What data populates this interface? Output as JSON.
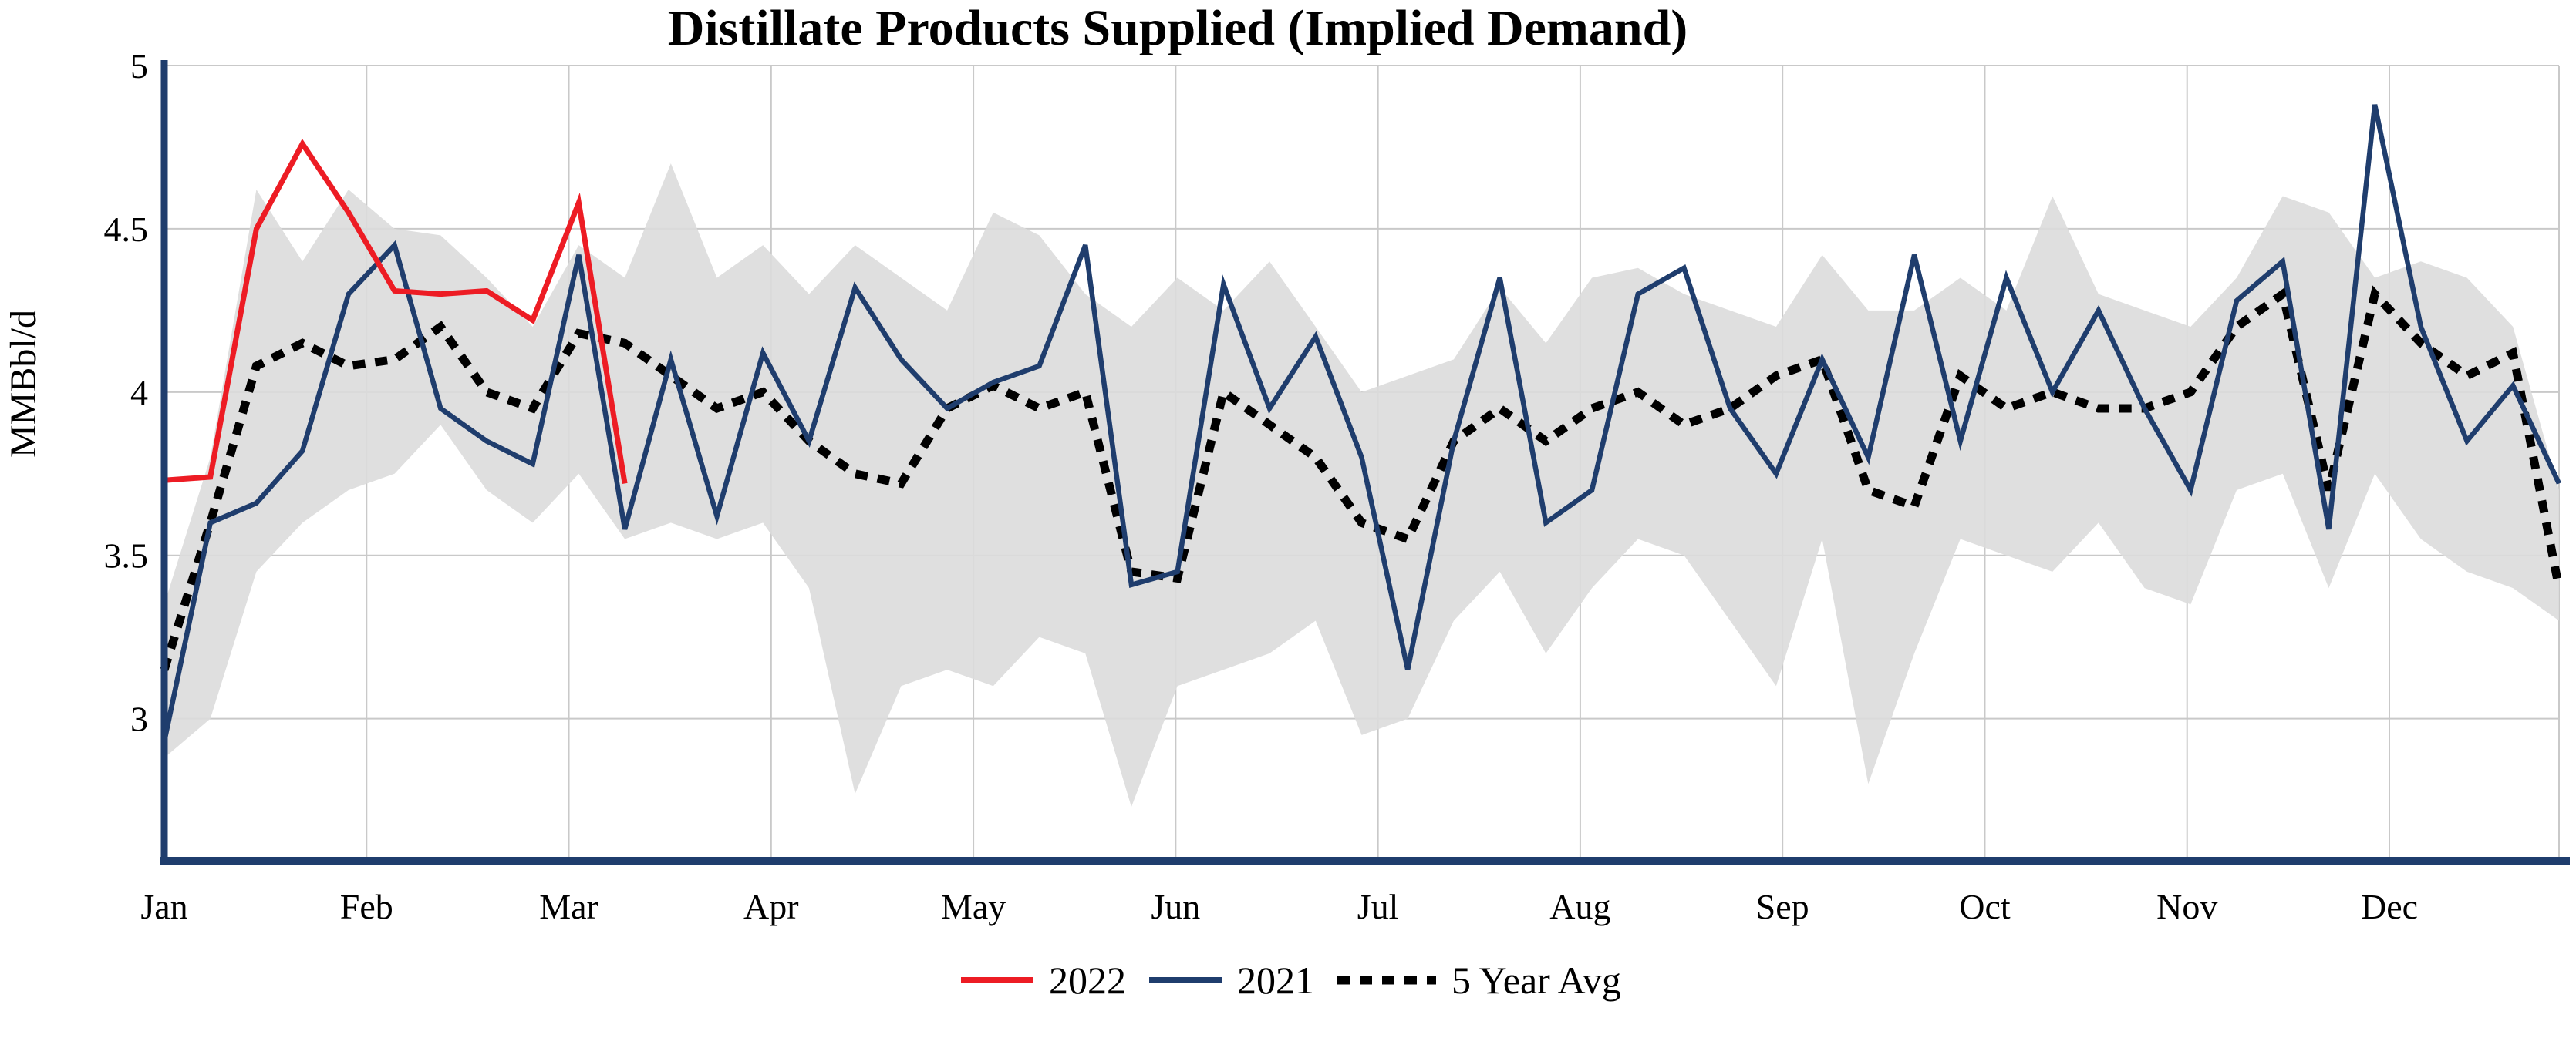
{
  "title": "Distillate Products Supplied (Implied Demand)",
  "y_axis_label": "MMBbl/d",
  "legend": [
    {
      "label": "2022",
      "color": "#ed1c24",
      "dash": ""
    },
    {
      "label": "2021",
      "color": "#1f3d6d",
      "dash": ""
    },
    {
      "label": "5 Year Avg",
      "color": "#000000",
      "dash": "16 13"
    }
  ],
  "colors": {
    "axis": "#1f3d6d",
    "gridline": "#c9c9c9",
    "band_fill": "#dcdcdc",
    "series_2022": "#ed1c24",
    "series_2021": "#1f3d6d",
    "series_avg": "#000000"
  },
  "chart_data": {
    "type": "line",
    "title": "Distillate Products Supplied (Implied Demand)",
    "ylabel": "MMBbl/d",
    "xlabel": "",
    "ylim": [
      2.565,
      5.0
    ],
    "grid": true,
    "legend_position": "bottom",
    "x_unit": "week-of-year",
    "x_months": [
      "Jan",
      "Feb",
      "Mar",
      "Apr",
      "May",
      "Jun",
      "Jul",
      "Aug",
      "Sep",
      "Oct",
      "Nov",
      "Dec"
    ],
    "yticks": [
      {
        "value": 5,
        "label": "5"
      },
      {
        "value": 4.5,
        "label": "4.5"
      },
      {
        "value": 4,
        "label": "4"
      },
      {
        "value": 3.5,
        "label": "3.5"
      },
      {
        "value": 3,
        "label": "3"
      }
    ],
    "series": [
      {
        "name": "2022",
        "color": "#ed1c24",
        "width": 7,
        "dash": "",
        "start_week": 1,
        "values": [
          3.73,
          3.74,
          4.5,
          4.76,
          4.55,
          4.31,
          4.3,
          4.31,
          4.22,
          4.58,
          3.72
        ]
      },
      {
        "name": "2021",
        "color": "#1f3d6d",
        "width": 6.5,
        "dash": "",
        "start_week": 1,
        "values": [
          2.93,
          3.6,
          3.66,
          3.82,
          4.3,
          4.45,
          3.95,
          3.85,
          3.78,
          4.42,
          3.58,
          4.1,
          3.62,
          4.12,
          3.85,
          4.32,
          4.1,
          3.95,
          4.03,
          4.08,
          4.45,
          3.41,
          3.45,
          4.33,
          3.95,
          4.17,
          3.8,
          3.15,
          3.85,
          4.35,
          3.6,
          3.7,
          4.3,
          4.38,
          3.95,
          3.75,
          4.1,
          3.8,
          4.42,
          3.85,
          4.35,
          4.0,
          4.25,
          3.95,
          3.7,
          4.28,
          4.4,
          3.58,
          4.88,
          4.2,
          3.85,
          4.02,
          3.72
        ]
      },
      {
        "name": "5 Year Avg",
        "color": "#000000",
        "width": 11,
        "dash": "16 13",
        "start_week": 1,
        "values": [
          3.15,
          3.6,
          4.08,
          4.15,
          4.08,
          4.1,
          4.2,
          4.0,
          3.95,
          4.18,
          4.15,
          4.05,
          3.95,
          4.0,
          3.85,
          3.75,
          3.72,
          3.95,
          4.02,
          3.95,
          4.0,
          3.45,
          3.43,
          4.0,
          3.9,
          3.8,
          3.6,
          3.55,
          3.85,
          3.95,
          3.85,
          3.95,
          4.0,
          3.9,
          3.95,
          4.05,
          4.1,
          3.7,
          3.65,
          4.05,
          3.95,
          4.0,
          3.95,
          3.95,
          4.0,
          4.2,
          4.3,
          3.7,
          4.3,
          4.15,
          4.05,
          4.12,
          3.4
        ]
      }
    ],
    "band": {
      "name": "5 Year Range",
      "fill": "#dcdcdc",
      "start_week": 1,
      "upper": [
        3.35,
        3.8,
        4.62,
        4.4,
        4.62,
        4.5,
        4.48,
        4.35,
        4.2,
        4.45,
        4.35,
        4.7,
        4.35,
        4.45,
        4.3,
        4.45,
        4.35,
        4.25,
        4.55,
        4.48,
        4.3,
        4.2,
        4.35,
        4.25,
        4.4,
        4.2,
        4.0,
        4.05,
        4.1,
        4.32,
        4.15,
        4.35,
        4.38,
        4.3,
        4.25,
        4.2,
        4.42,
        4.25,
        4.25,
        4.35,
        4.25,
        4.6,
        4.3,
        4.25,
        4.2,
        4.35,
        4.6,
        4.55,
        4.35,
        4.4,
        4.35,
        4.2,
        3.7
      ],
      "lower": [
        2.88,
        3.0,
        3.45,
        3.6,
        3.7,
        3.75,
        3.9,
        3.7,
        3.6,
        3.75,
        3.55,
        3.6,
        3.55,
        3.6,
        3.4,
        2.77,
        3.1,
        3.15,
        3.1,
        3.25,
        3.2,
        2.73,
        3.1,
        3.15,
        3.2,
        3.3,
        2.95,
        3.0,
        3.3,
        3.45,
        3.2,
        3.4,
        3.55,
        3.5,
        3.3,
        3.1,
        3.55,
        2.8,
        3.2,
        3.55,
        3.5,
        3.45,
        3.6,
        3.4,
        3.35,
        3.7,
        3.75,
        3.4,
        3.75,
        3.55,
        3.45,
        3.4,
        3.3
      ]
    }
  }
}
